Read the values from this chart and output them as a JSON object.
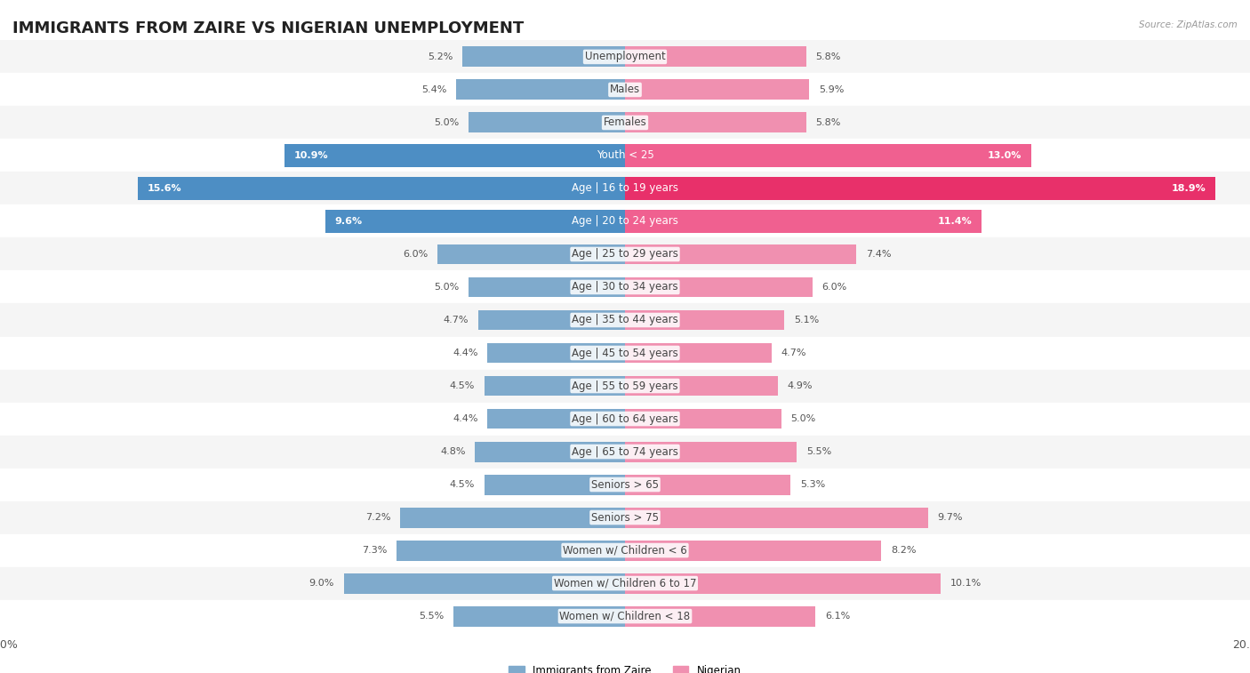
{
  "title": "IMMIGRANTS FROM ZAIRE VS NIGERIAN UNEMPLOYMENT",
  "source": "Source: ZipAtlas.com",
  "categories": [
    "Unemployment",
    "Males",
    "Females",
    "Youth < 25",
    "Age | 16 to 19 years",
    "Age | 20 to 24 years",
    "Age | 25 to 29 years",
    "Age | 30 to 34 years",
    "Age | 35 to 44 years",
    "Age | 45 to 54 years",
    "Age | 55 to 59 years",
    "Age | 60 to 64 years",
    "Age | 65 to 74 years",
    "Seniors > 65",
    "Seniors > 75",
    "Women w/ Children < 6",
    "Women w/ Children 6 to 17",
    "Women w/ Children < 18"
  ],
  "zaire_values": [
    5.2,
    5.4,
    5.0,
    10.9,
    15.6,
    9.6,
    6.0,
    5.0,
    4.7,
    4.4,
    4.5,
    4.4,
    4.8,
    4.5,
    7.2,
    7.3,
    9.0,
    5.5
  ],
  "nigerian_values": [
    5.8,
    5.9,
    5.8,
    13.0,
    18.9,
    11.4,
    7.4,
    6.0,
    5.1,
    4.7,
    4.9,
    5.0,
    5.5,
    5.3,
    9.7,
    8.2,
    10.1,
    6.1
  ],
  "zaire_color": "#7faacc",
  "nigerian_color": "#f090b0",
  "highlight_zaire_color": "#4d8ec4",
  "highlight_nigerian_color": "#e8306a",
  "highlight_nigerian_color2": "#f06090",
  "row_colors_odd": "#f5f5f5",
  "row_colors_even": "#ffffff",
  "axis_limit": 20.0,
  "legend_zaire": "Immigrants from Zaire",
  "legend_nigerian": "Nigerian",
  "title_fontsize": 13,
  "label_fontsize": 8.5,
  "value_fontsize": 8,
  "bar_height": 0.62,
  "highlight_rows": [
    3,
    4,
    5
  ],
  "background_color": "#ffffff"
}
